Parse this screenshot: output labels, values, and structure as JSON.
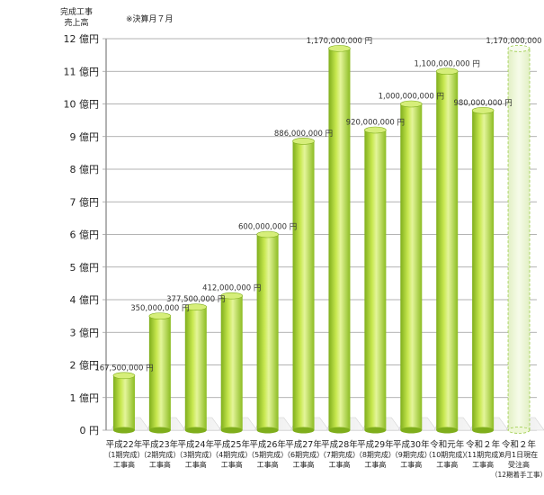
{
  "chart_data": {
    "type": "bar",
    "ylabel_lines": [
      "完成工事",
      "売上高"
    ],
    "note": "※決算月７月",
    "y_ticks": [
      "0 円",
      "1 億円",
      "2 億円",
      "3 億円",
      "4 億円",
      "5 億円",
      "6 億円",
      "7 億円",
      "8 億円",
      "9 億円",
      "10 億円",
      "11 億円",
      "12 億円"
    ],
    "ylim": [
      0,
      12
    ],
    "grid": true,
    "categories": [
      {
        "line1": "平成22年",
        "line2": "（1期完成）",
        "line3": "工事高"
      },
      {
        "line1": "平成23年",
        "line2": "（2期完成）",
        "line3": "工事高"
      },
      {
        "line1": "平成24年",
        "line2": "（3期完成）",
        "line3": "工事高"
      },
      {
        "line1": "平成25年",
        "line2": "（4期完成）",
        "line3": "工事高"
      },
      {
        "line1": "平成26年",
        "line2": "（5期完成）",
        "line3": "工事高"
      },
      {
        "line1": "平成27年",
        "line2": "（6期完成）",
        "line3": "工事高"
      },
      {
        "line1": "平成28年",
        "line2": "（7期完成）",
        "line3": "工事高"
      },
      {
        "line1": "平成29年",
        "line2": "（8期完成）",
        "line3": "工事高"
      },
      {
        "line1": "平成30年",
        "line2": "（9期完成）",
        "line3": "工事高"
      },
      {
        "line1": "令和元年",
        "line2": "（10期完成）",
        "line3": "工事高"
      },
      {
        "line1": "令和２年",
        "line2": "（11期完成）",
        "line3": "工事高"
      },
      {
        "line1": "令和２年",
        "line2": "8月1日現在",
        "line3": "受注高",
        "line4": "（12期着手工事）"
      }
    ],
    "values": [
      1.675,
      3.5,
      3.775,
      4.12,
      6.0,
      8.86,
      11.7,
      9.2,
      10.0,
      11.0,
      9.8,
      11.7
    ],
    "value_labels": [
      "167,500,000 円",
      "350,000,000 円",
      "377,500,000 円",
      "412,000,000 円",
      "600,000,000 円",
      "886,000,000 円",
      "1,170,000,000 円",
      "920,000,000 円",
      "1,000,000,000 円",
      "1,100,000,000 円",
      "980,000,000 円",
      "1,170,000,000 円"
    ],
    "highlight_last": true
  },
  "colors": {
    "bar_dark": "#7fae1c",
    "bar_mid": "#b6dc3a",
    "bar_light": "#e4f59a",
    "bar_top": "#d6ee7a",
    "ghost_fill": "#eef7d6",
    "ghost_stroke": "#9ccc4a",
    "grid": "#9a9a9a",
    "axis": "#666666"
  }
}
